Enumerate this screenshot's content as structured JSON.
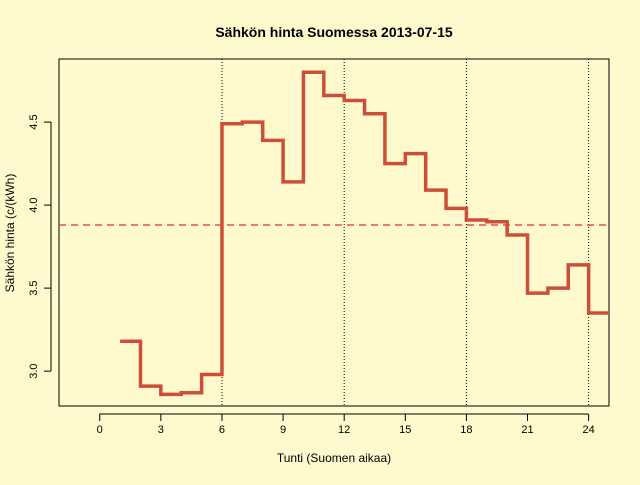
{
  "colors": {
    "background": "#fffacd",
    "series": "#cd4f39",
    "mean_line": "#e05050",
    "axis": "#000000"
  },
  "chart_data": {
    "type": "line",
    "step": true,
    "title": "Sähkön hinta Suomessa 2013-07-15",
    "xlabel": "Tunti (Suomen aikaa)",
    "ylabel": "Sähkön hinta (c/(kWh)",
    "xlim": [
      -2,
      25
    ],
    "ylim": [
      2.79,
      4.88
    ],
    "x_ticks": [
      0,
      3,
      6,
      9,
      12,
      15,
      18,
      21,
      24
    ],
    "y_ticks": [
      3.0,
      3.5,
      4.0,
      4.5
    ],
    "vertical_gridlines": [
      6,
      12,
      18,
      24
    ],
    "mean_line": 3.88,
    "series": [
      {
        "x": [
          1,
          2,
          3,
          4,
          5,
          6,
          7,
          8,
          9,
          10,
          11,
          12,
          13,
          14,
          15,
          16,
          17,
          18,
          19,
          20,
          21,
          22,
          23,
          24,
          25
        ],
        "values": [
          3.18,
          2.91,
          2.86,
          2.87,
          2.98,
          4.49,
          4.5,
          4.39,
          4.14,
          4.8,
          4.66,
          4.63,
          4.55,
          4.25,
          4.31,
          4.09,
          3.98,
          3.91,
          3.9,
          3.82,
          3.47,
          3.5,
          3.64,
          3.35,
          3.35
        ]
      }
    ]
  }
}
